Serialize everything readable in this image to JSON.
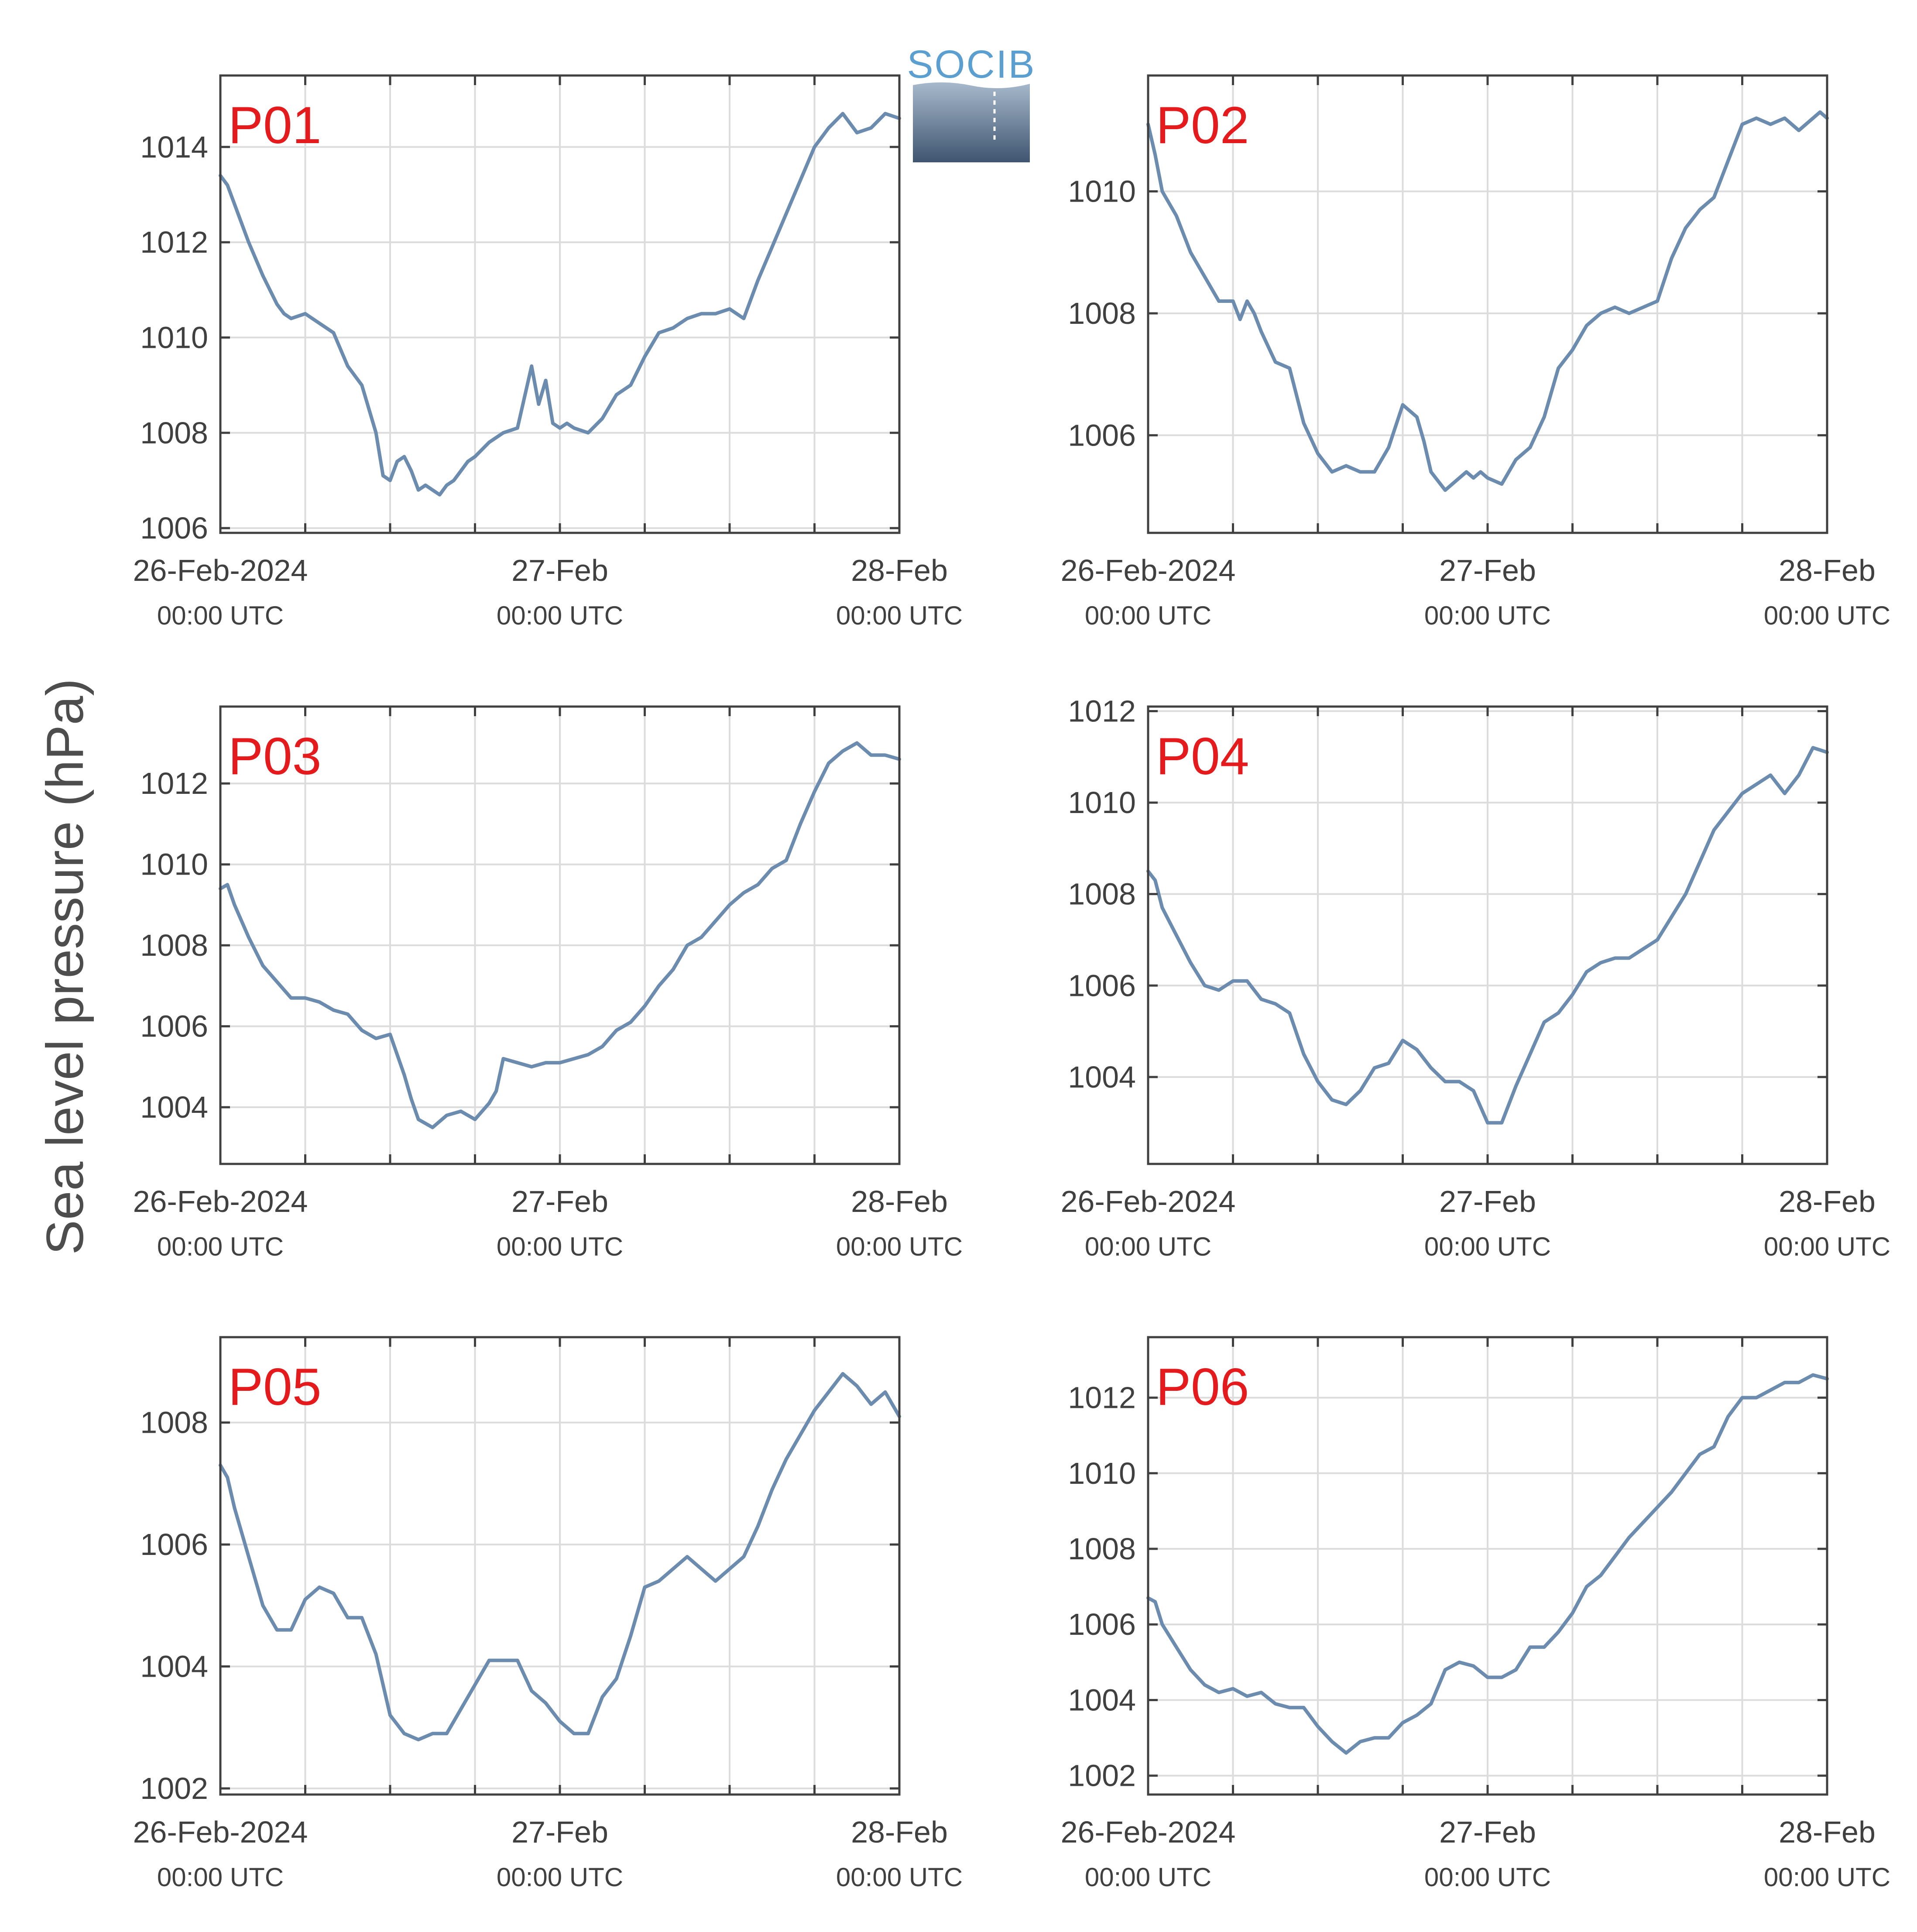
{
  "logo": {
    "text": "SOCIB"
  },
  "ylabel": "Sea level pressure (hPa)",
  "colors": {
    "line": "#6b8cae",
    "panel_label": "#e41a1c",
    "grid": "#dcdcdc",
    "axis": "#404040"
  },
  "chart_data": [
    {
      "type": "line",
      "title": "P01",
      "x_ticks": [
        {
          "label": "26-Feb-2024",
          "sub": "00:00 UTC"
        },
        {
          "label": "27-Feb",
          "sub": "00:00 UTC"
        },
        {
          "label": "28-Feb",
          "sub": "00:00 UTC"
        }
      ],
      "ylim": [
        1005.9,
        1015.5
      ],
      "yticks": [
        1006,
        1008,
        1010,
        1012,
        1014
      ],
      "xlim_hours": [
        0,
        48
      ],
      "grid": true,
      "series": [
        {
          "x": [
            0,
            0.5,
            1,
            2,
            3,
            4,
            4.5,
            5,
            6,
            6.5,
            7,
            8,
            9,
            10,
            11,
            11.5,
            12,
            12.5,
            13,
            13.5,
            14,
            14.5,
            15,
            15.5,
            16,
            16.5,
            17,
            17.5,
            18,
            19,
            20,
            21,
            22,
            22.5,
            23,
            23.5,
            24,
            24.5,
            25,
            26,
            27,
            28,
            29,
            30,
            31,
            32,
            33,
            34,
            35,
            36,
            37,
            38,
            39,
            40,
            41,
            42,
            43,
            44,
            45,
            46,
            47,
            48
          ],
          "y": [
            1013.4,
            1013.2,
            1012.8,
            1012.0,
            1011.3,
            1010.7,
            1010.5,
            1010.4,
            1010.5,
            1010.4,
            1010.3,
            1010.1,
            1009.4,
            1009.0,
            1008.0,
            1007.1,
            1007.0,
            1007.4,
            1007.5,
            1007.2,
            1006.8,
            1006.9,
            1006.8,
            1006.7,
            1006.9,
            1007.0,
            1007.2,
            1007.4,
            1007.5,
            1007.8,
            1008.0,
            1008.1,
            1009.4,
            1008.6,
            1009.1,
            1008.2,
            1008.1,
            1008.2,
            1008.1,
            1008.0,
            1008.3,
            1008.8,
            1009.0,
            1009.6,
            1010.1,
            1010.2,
            1010.4,
            1010.5,
            1010.5,
            1010.6,
            1010.4,
            1011.2,
            1011.9,
            1012.6,
            1013.3,
            1014.0,
            1014.4,
            1014.7,
            1014.3,
            1014.4,
            1014.7,
            1014.6
          ]
        }
      ]
    },
    {
      "type": "line",
      "title": "P02",
      "x_ticks": [
        {
          "label": "26-Feb-2024",
          "sub": "00:00 UTC"
        },
        {
          "label": "27-Feb",
          "sub": "00:00 UTC"
        },
        {
          "label": "28-Feb",
          "sub": "00:00 UTC"
        }
      ],
      "ylim": [
        1004.4,
        1011.9
      ],
      "yticks": [
        1006,
        1008,
        1010
      ],
      "xlim_hours": [
        0,
        48
      ],
      "grid": true,
      "series": [
        {
          "x": [
            0,
            0.5,
            1,
            2,
            3,
            4,
            5,
            6,
            6.5,
            7,
            7.5,
            8,
            9,
            10,
            11,
            12,
            13,
            14,
            15,
            16,
            17,
            18,
            19,
            19.5,
            20,
            21,
            22,
            22.5,
            23,
            23.5,
            24,
            25,
            26,
            27,
            28,
            29,
            30,
            31,
            32,
            33,
            34,
            35,
            36,
            37,
            38,
            39,
            40,
            41,
            42,
            43,
            44,
            45,
            46,
            47,
            47.5,
            48
          ],
          "y": [
            1011.1,
            1010.6,
            1010.0,
            1009.6,
            1009.0,
            1008.6,
            1008.2,
            1008.2,
            1007.9,
            1008.2,
            1008.0,
            1007.7,
            1007.2,
            1007.1,
            1006.2,
            1005.7,
            1005.4,
            1005.5,
            1005.4,
            1005.4,
            1005.8,
            1006.5,
            1006.3,
            1005.9,
            1005.4,
            1005.1,
            1005.3,
            1005.4,
            1005.3,
            1005.4,
            1005.3,
            1005.2,
            1005.6,
            1005.8,
            1006.3,
            1007.1,
            1007.4,
            1007.8,
            1008.0,
            1008.1,
            1008.0,
            1008.1,
            1008.2,
            1008.9,
            1009.4,
            1009.7,
            1009.9,
            1010.5,
            1011.1,
            1011.2,
            1011.1,
            1011.2,
            1011.0,
            1011.2,
            1011.3,
            1011.2
          ]
        }
      ]
    },
    {
      "type": "line",
      "title": "P03",
      "x_ticks": [
        {
          "label": "26-Feb-2024",
          "sub": "00:00 UTC"
        },
        {
          "label": "27-Feb",
          "sub": "00:00 UTC"
        },
        {
          "label": "28-Feb",
          "sub": "00:00 UTC"
        }
      ],
      "ylim": [
        1002.6,
        1013.9
      ],
      "yticks": [
        1004,
        1006,
        1008,
        1010,
        1012
      ],
      "xlim_hours": [
        0,
        48
      ],
      "grid": true,
      "series": [
        {
          "x": [
            0,
            0.5,
            1,
            2,
            3,
            4,
            5,
            6,
            7,
            8,
            9,
            10,
            11,
            12,
            13,
            13.5,
            14,
            15,
            16,
            17,
            18,
            19,
            19.5,
            20,
            21,
            22,
            23,
            24,
            25,
            26,
            27,
            28,
            29,
            30,
            31,
            32,
            33,
            34,
            35,
            36,
            37,
            38,
            39,
            40,
            41,
            42,
            43,
            44,
            45,
            46,
            47,
            48
          ],
          "y": [
            1009.4,
            1009.5,
            1009.0,
            1008.2,
            1007.5,
            1007.1,
            1006.7,
            1006.7,
            1006.6,
            1006.4,
            1006.3,
            1005.9,
            1005.7,
            1005.8,
            1004.8,
            1004.2,
            1003.7,
            1003.5,
            1003.8,
            1003.9,
            1003.7,
            1004.1,
            1004.4,
            1005.2,
            1005.1,
            1005.0,
            1005.1,
            1005.1,
            1005.2,
            1005.3,
            1005.5,
            1005.9,
            1006.1,
            1006.5,
            1007.0,
            1007.4,
            1008.0,
            1008.2,
            1008.6,
            1009.0,
            1009.3,
            1009.5,
            1009.9,
            1010.1,
            1011.0,
            1011.8,
            1012.5,
            1012.8,
            1013.0,
            1012.7,
            1012.7,
            1012.6
          ]
        }
      ]
    },
    {
      "type": "line",
      "title": "P04",
      "x_ticks": [
        {
          "label": "26-Feb-2024",
          "sub": "00:00 UTC"
        },
        {
          "label": "27-Feb",
          "sub": "00:00 UTC"
        },
        {
          "label": "28-Feb",
          "sub": "00:00 UTC"
        }
      ],
      "ylim": [
        1002.1,
        1012.1
      ],
      "yticks": [
        1004,
        1006,
        1008,
        1010,
        1012
      ],
      "xlim_hours": [
        0,
        48
      ],
      "grid": true,
      "series": [
        {
          "x": [
            0,
            0.5,
            1,
            2,
            3,
            4,
            5,
            6,
            7,
            8,
            9,
            10,
            11,
            12,
            13,
            14,
            15,
            16,
            17,
            18,
            19,
            20,
            21,
            22,
            23,
            24,
            25,
            26,
            27,
            28,
            29,
            30,
            31,
            32,
            33,
            34,
            35,
            36,
            37,
            38,
            39,
            40,
            41,
            42,
            43,
            44,
            45,
            46,
            47,
            48
          ],
          "y": [
            1008.5,
            1008.3,
            1007.7,
            1007.1,
            1006.5,
            1006.0,
            1005.9,
            1006.1,
            1006.1,
            1005.7,
            1005.6,
            1005.4,
            1004.5,
            1003.9,
            1003.5,
            1003.4,
            1003.7,
            1004.2,
            1004.3,
            1004.8,
            1004.6,
            1004.2,
            1003.9,
            1003.9,
            1003.7,
            1003.0,
            1003.0,
            1003.8,
            1004.5,
            1005.2,
            1005.4,
            1005.8,
            1006.3,
            1006.5,
            1006.6,
            1006.6,
            1006.8,
            1007.0,
            1007.5,
            1008.0,
            1008.7,
            1009.4,
            1009.8,
            1010.2,
            1010.4,
            1010.6,
            1010.2,
            1010.6,
            1011.2,
            1011.1
          ]
        }
      ]
    },
    {
      "type": "line",
      "title": "P05",
      "x_ticks": [
        {
          "label": "26-Feb-2024",
          "sub": "00:00 UTC"
        },
        {
          "label": "27-Feb",
          "sub": "00:00 UTC"
        },
        {
          "label": "28-Feb",
          "sub": "00:00 UTC"
        }
      ],
      "ylim": [
        1001.9,
        1009.4
      ],
      "yticks": [
        1002,
        1004,
        1006,
        1008
      ],
      "xlim_hours": [
        0,
        48
      ],
      "grid": true,
      "series": [
        {
          "x": [
            0,
            0.5,
            1,
            2,
            3,
            4,
            5,
            6,
            7,
            8,
            9,
            10,
            11,
            12,
            13,
            14,
            15,
            16,
            17,
            18,
            19,
            20,
            21,
            22,
            23,
            24,
            25,
            26,
            27,
            28,
            29,
            30,
            31,
            32,
            33,
            34,
            35,
            36,
            37,
            38,
            39,
            40,
            41,
            42,
            43,
            44,
            45,
            46,
            47,
            48
          ],
          "y": [
            1007.3,
            1007.1,
            1006.6,
            1005.8,
            1005.0,
            1004.6,
            1004.6,
            1005.1,
            1005.3,
            1005.2,
            1004.8,
            1004.8,
            1004.2,
            1003.2,
            1002.9,
            1002.8,
            1002.9,
            1002.9,
            1003.3,
            1003.7,
            1004.1,
            1004.1,
            1004.1,
            1003.6,
            1003.4,
            1003.1,
            1002.9,
            1002.9,
            1003.5,
            1003.8,
            1004.5,
            1005.3,
            1005.4,
            1005.6,
            1005.8,
            1005.6,
            1005.4,
            1005.6,
            1005.8,
            1006.3,
            1006.9,
            1007.4,
            1007.8,
            1008.2,
            1008.5,
            1008.8,
            1008.6,
            1008.3,
            1008.5,
            1008.1
          ]
        }
      ]
    },
    {
      "type": "line",
      "title": "P06",
      "x_ticks": [
        {
          "label": "26-Feb-2024",
          "sub": "00:00 UTC"
        },
        {
          "label": "27-Feb",
          "sub": "00:00 UTC"
        },
        {
          "label": "28-Feb",
          "sub": "00:00 UTC"
        }
      ],
      "ylim": [
        1001.5,
        1013.6
      ],
      "yticks": [
        1002,
        1004,
        1006,
        1008,
        1010,
        1012
      ],
      "xlim_hours": [
        0,
        48
      ],
      "grid": true,
      "series": [
        {
          "x": [
            0,
            0.5,
            1,
            2,
            3,
            4,
            5,
            6,
            7,
            8,
            9,
            10,
            11,
            12,
            13,
            14,
            15,
            16,
            17,
            18,
            19,
            20,
            21,
            22,
            23,
            24,
            25,
            26,
            27,
            28,
            29,
            30,
            31,
            32,
            33,
            34,
            35,
            36,
            37,
            38,
            39,
            40,
            41,
            42,
            43,
            44,
            45,
            46,
            47,
            48
          ],
          "y": [
            1006.7,
            1006.6,
            1006.0,
            1005.4,
            1004.8,
            1004.4,
            1004.2,
            1004.3,
            1004.1,
            1004.2,
            1003.9,
            1003.8,
            1003.8,
            1003.3,
            1002.9,
            1002.6,
            1002.9,
            1003.0,
            1003.0,
            1003.4,
            1003.6,
            1003.9,
            1004.8,
            1005.0,
            1004.9,
            1004.6,
            1004.6,
            1004.8,
            1005.4,
            1005.4,
            1005.8,
            1006.3,
            1007.0,
            1007.3,
            1007.8,
            1008.3,
            1008.7,
            1009.1,
            1009.5,
            1010.0,
            1010.5,
            1010.7,
            1011.5,
            1012.0,
            1012.0,
            1012.2,
            1012.4,
            1012.4,
            1012.6,
            1012.5
          ]
        }
      ]
    }
  ]
}
